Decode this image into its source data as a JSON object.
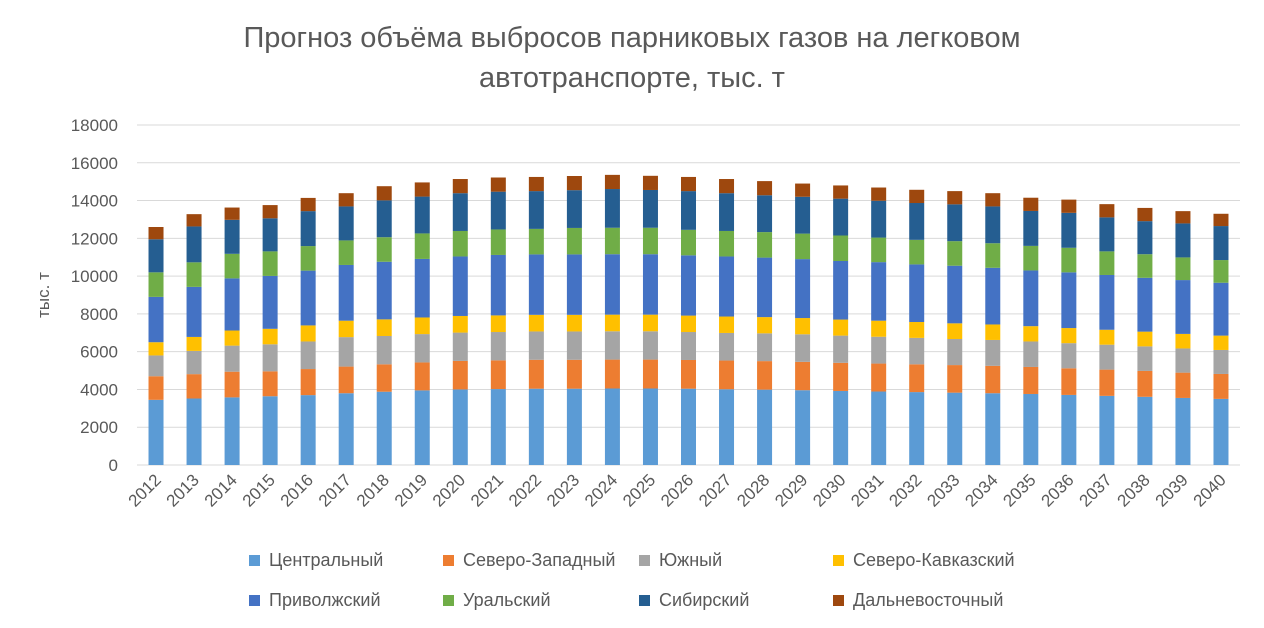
{
  "chart_data": {
    "type": "bar",
    "stacked": true,
    "title_line1": "Прогноз объёма выбросов парниковых газов на легковом",
    "title_line2": "автотранспорте, тыс. т",
    "ylabel": "тыс. т",
    "xlabel": "",
    "ylim": [
      0,
      18000
    ],
    "yticks": [
      0,
      2000,
      4000,
      6000,
      8000,
      10000,
      12000,
      14000,
      16000,
      18000
    ],
    "grid": true,
    "legend_position": "bottom",
    "categories": [
      "2012",
      "2013",
      "2014",
      "2015",
      "2016",
      "2017",
      "2018",
      "2019",
      "2020",
      "2021",
      "2022",
      "2023",
      "2024",
      "2025",
      "2026",
      "2027",
      "2028",
      "2029",
      "2030",
      "2031",
      "2032",
      "2033",
      "2034",
      "2035",
      "2036",
      "2037",
      "2038",
      "2039",
      "2040"
    ],
    "series": [
      {
        "name": "Центральный",
        "color": "#5b9bd5",
        "values": [
          3450,
          3520,
          3580,
          3640,
          3700,
          3800,
          3880,
          3950,
          4000,
          4020,
          4040,
          4040,
          4050,
          4050,
          4040,
          4010,
          3990,
          3960,
          3920,
          3890,
          3860,
          3830,
          3800,
          3760,
          3710,
          3660,
          3610,
          3550,
          3500
        ]
      },
      {
        "name": "Северо-Западный",
        "color": "#ed7d31",
        "values": [
          1250,
          1290,
          1360,
          1320,
          1380,
          1410,
          1450,
          1480,
          1510,
          1520,
          1530,
          1530,
          1530,
          1530,
          1520,
          1520,
          1510,
          1500,
          1490,
          1480,
          1470,
          1460,
          1450,
          1430,
          1410,
          1390,
          1370,
          1340,
          1320
        ]
      },
      {
        "name": "Южный",
        "color": "#a5a5a5",
        "values": [
          1100,
          1230,
          1380,
          1430,
          1460,
          1560,
          1500,
          1500,
          1500,
          1500,
          1500,
          1500,
          1500,
          1500,
          1480,
          1460,
          1470,
          1460,
          1440,
          1420,
          1400,
          1380,
          1370,
          1350,
          1330,
          1320,
          1300,
          1280,
          1270
        ]
      },
      {
        "name": "Северо-Кавказский",
        "color": "#ffc000",
        "values": [
          700,
          740,
          800,
          820,
          850,
          870,
          880,
          880,
          880,
          880,
          880,
          880,
          880,
          880,
          870,
          870,
          860,
          860,
          850,
          850,
          840,
          830,
          820,
          810,
          800,
          790,
          780,
          770,
          760
        ]
      },
      {
        "name": "Приволжский",
        "color": "#4472c4",
        "values": [
          2400,
          2650,
          2760,
          2800,
          2900,
          2950,
          3050,
          3100,
          3150,
          3200,
          3200,
          3200,
          3200,
          3200,
          3190,
          3180,
          3150,
          3120,
          3100,
          3100,
          3050,
          3050,
          3000,
          2950,
          2950,
          2900,
          2850,
          2850,
          2800
        ]
      },
      {
        "name": "Уральский",
        "color": "#70ad47",
        "values": [
          1300,
          1300,
          1300,
          1300,
          1300,
          1300,
          1300,
          1350,
          1350,
          1350,
          1350,
          1400,
          1400,
          1400,
          1350,
          1350,
          1350,
          1350,
          1350,
          1300,
          1300,
          1300,
          1300,
          1300,
          1300,
          1250,
          1250,
          1200,
          1200
        ]
      },
      {
        "name": "Сибирский",
        "color": "#255e91",
        "values": [
          1750,
          1900,
          1800,
          1750,
          1850,
          1800,
          1950,
          1950,
          2000,
          2000,
          2000,
          2000,
          2050,
          2000,
          2050,
          2000,
          1950,
          1950,
          1950,
          1950,
          1950,
          1950,
          1950,
          1850,
          1850,
          1800,
          1750,
          1800,
          1800
        ]
      },
      {
        "name": "Дальневосточный",
        "color": "#9e480e",
        "values": [
          650,
          650,
          650,
          700,
          700,
          700,
          750,
          750,
          750,
          750,
          750,
          750,
          750,
          750,
          750,
          750,
          750,
          700,
          700,
          700,
          700,
          700,
          700,
          700,
          700,
          700,
          700,
          650,
          650
        ]
      }
    ]
  }
}
